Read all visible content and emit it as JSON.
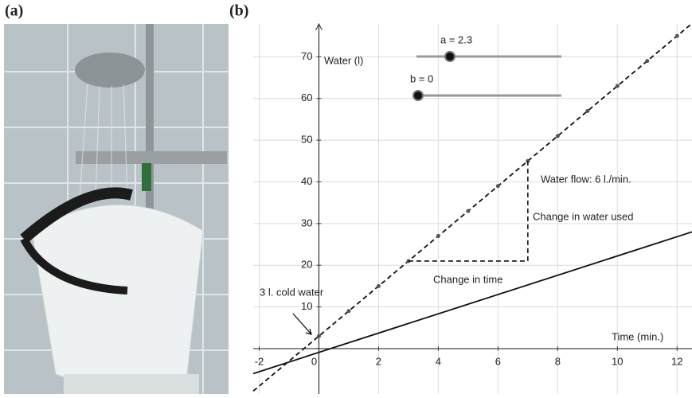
{
  "panels": [
    "(a)",
    "(b)"
  ],
  "chart_data": {
    "type": "line",
    "y_label": "Water (l)",
    "x_label": "Time (min.)",
    "xlim": [
      -2.2,
      12.5
    ],
    "ylim": [
      -10.9,
      77.9
    ],
    "xticks": [
      -2,
      0,
      2,
      4,
      6,
      8,
      10,
      12
    ],
    "yticks": [
      10,
      20,
      30,
      40,
      50,
      60,
      70
    ],
    "grid": true,
    "sliders": [
      "a = 2.3",
      "b = 0"
    ],
    "series": [
      {
        "color": "#111111",
        "style": "dashed",
        "x": [
          -2.2,
          12.5
        ],
        "values": [
          -10.2,
          78
        ]
      },
      {
        "color": "#555555",
        "style": "points",
        "x": [
          0,
          1,
          2,
          3,
          4,
          5,
          6,
          7,
          8,
          9,
          10,
          11,
          12
        ],
        "values": [
          3,
          9,
          15,
          21,
          27,
          33,
          39,
          45,
          51,
          57,
          63,
          69,
          75
        ]
      },
      {
        "color": "#111111",
        "style": "solid",
        "x": [
          -2.2,
          12.5
        ],
        "values": [
          -6,
          28
        ]
      }
    ],
    "slope_triangle": {
      "x": [
        3,
        7,
        7
      ],
      "values": [
        21,
        21,
        45
      ]
    },
    "annotations": [
      "Water flow: 6 l./min.",
      "Change in water used",
      "Change in time",
      "3 l. cold water"
    ]
  }
}
